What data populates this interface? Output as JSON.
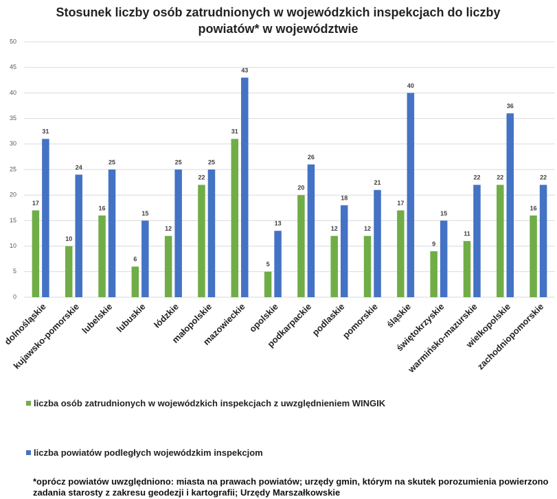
{
  "chart_data": {
    "type": "bar",
    "title": "Stosunek liczby osób zatrudnionych w wojewódzkich inspekcjach do liczby powiatów* w województwie",
    "categories": [
      "dolnośląskie",
      "kujawsko-pomorskie",
      "lubelskie",
      "lubuskie",
      "łódzkie",
      "małopolskie",
      "mazowieckie",
      "opolskie",
      "podkarpackie",
      "podlaskie",
      "pomorskie",
      "śląskie",
      "świętokrzyskie",
      "warmińsko-mazurskie",
      "wielkopolskie",
      "zachodniopomorskie"
    ],
    "series": [
      {
        "name": "liczba osób zatrudnionych w wojewódzkich inspekcjach z uwzględnieniem WINGIK",
        "color": "#70ad47",
        "values": [
          17,
          10,
          16,
          6,
          12,
          22,
          31,
          5,
          20,
          12,
          12,
          17,
          9,
          11,
          22,
          16
        ]
      },
      {
        "name": "liczba powiatów podległych wojewódzkim inspekcjom",
        "color": "#4472c4",
        "values": [
          31,
          24,
          25,
          15,
          25,
          25,
          43,
          13,
          26,
          18,
          21,
          40,
          15,
          22,
          36,
          22
        ]
      }
    ],
    "ylim": [
      0,
      50
    ],
    "yticks": [
      0,
      5,
      10,
      15,
      20,
      25,
      30,
      35,
      40,
      45,
      50
    ],
    "grid": true,
    "footnote": "*oprócz powiatów uwzględniono: miasta na prawach powiatów; urzędy gmin, którym na skutek porozumienia powierzono zadania starosty z zakresu geodezji i kartografii; Urzędy Marszałkowskie"
  }
}
